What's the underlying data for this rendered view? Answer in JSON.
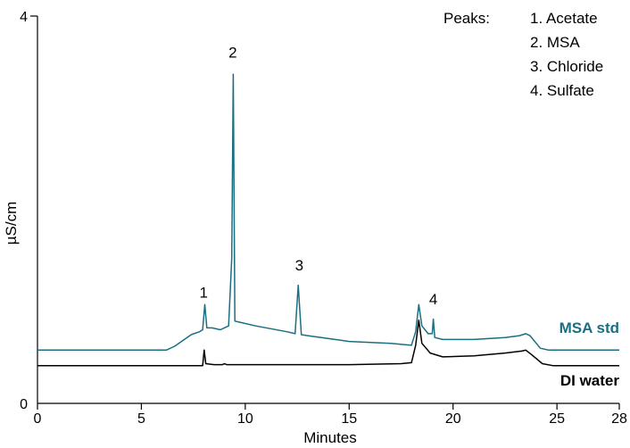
{
  "chart_data": {
    "type": "line",
    "xlabel": "Minutes",
    "ylabel": "µS/cm",
    "xlim": [
      0,
      28
    ],
    "ylim": [
      0,
      4
    ],
    "x_ticks": [
      "0",
      "5",
      "10",
      "15",
      "20",
      "25",
      "28"
    ],
    "y_ticks": [
      "0",
      "4"
    ],
    "legend_title": "Peaks:",
    "legend_position": "top-right",
    "legend_items": [
      "1. Acetate",
      "2. MSA",
      "3. Chloride",
      "4. Sulfate"
    ],
    "colors": {
      "msa_std": "#1b6f80",
      "di_water": "#000000"
    },
    "peak_labels": [
      {
        "text": "1",
        "x": 8.0,
        "y": 1.02
      },
      {
        "text": "2",
        "x": 9.4,
        "y": 3.5
      },
      {
        "text": "3",
        "x": 12.6,
        "y": 1.3
      },
      {
        "text": "4",
        "x": 19.05,
        "y": 0.95
      }
    ],
    "series": [
      {
        "name": "MSA std",
        "points": [
          [
            0,
            0.55
          ],
          [
            6.2,
            0.55
          ],
          [
            6.6,
            0.59
          ],
          [
            7.0,
            0.65
          ],
          [
            7.4,
            0.71
          ],
          [
            7.8,
            0.74
          ],
          [
            7.95,
            0.76
          ],
          [
            8.05,
            1.02
          ],
          [
            8.15,
            0.78
          ],
          [
            8.4,
            0.78
          ],
          [
            8.8,
            0.76
          ],
          [
            9.2,
            0.8
          ],
          [
            9.35,
            1.5
          ],
          [
            9.42,
            3.4
          ],
          [
            9.5,
            0.85
          ],
          [
            9.7,
            0.84
          ],
          [
            10.5,
            0.8
          ],
          [
            12.0,
            0.74
          ],
          [
            12.4,
            0.72
          ],
          [
            12.55,
            1.22
          ],
          [
            12.7,
            0.71
          ],
          [
            13.0,
            0.7
          ],
          [
            15.0,
            0.64
          ],
          [
            17.0,
            0.62
          ],
          [
            18.0,
            0.6
          ],
          [
            18.2,
            0.74
          ],
          [
            18.35,
            1.02
          ],
          [
            18.5,
            0.8
          ],
          [
            18.8,
            0.72
          ],
          [
            19.0,
            0.72
          ],
          [
            19.05,
            0.87
          ],
          [
            19.12,
            0.68
          ],
          [
            19.5,
            0.66
          ],
          [
            21.0,
            0.66
          ],
          [
            22.5,
            0.68
          ],
          [
            23.2,
            0.7
          ],
          [
            23.5,
            0.72
          ],
          [
            23.7,
            0.7
          ],
          [
            24.2,
            0.57
          ],
          [
            24.6,
            0.55
          ],
          [
            28,
            0.55
          ]
        ]
      },
      {
        "name": "DI water",
        "points": [
          [
            0,
            0.39
          ],
          [
            7.95,
            0.39
          ],
          [
            8.02,
            0.55
          ],
          [
            8.1,
            0.41
          ],
          [
            8.5,
            0.4
          ],
          [
            8.9,
            0.4
          ],
          [
            9.0,
            0.41
          ],
          [
            9.1,
            0.4
          ],
          [
            12.0,
            0.4
          ],
          [
            15.0,
            0.4
          ],
          [
            17.5,
            0.41
          ],
          [
            18.0,
            0.42
          ],
          [
            18.2,
            0.6
          ],
          [
            18.35,
            0.86
          ],
          [
            18.5,
            0.62
          ],
          [
            18.9,
            0.52
          ],
          [
            19.5,
            0.48
          ],
          [
            21.0,
            0.49
          ],
          [
            22.5,
            0.52
          ],
          [
            23.3,
            0.54
          ],
          [
            23.5,
            0.55
          ],
          [
            23.8,
            0.5
          ],
          [
            24.3,
            0.41
          ],
          [
            24.8,
            0.39
          ],
          [
            28,
            0.39
          ]
        ]
      }
    ]
  }
}
